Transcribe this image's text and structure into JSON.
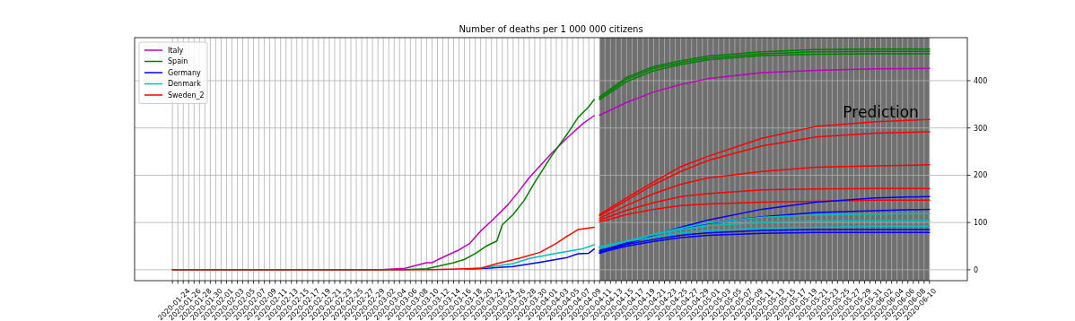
{
  "chart_data": {
    "type": "line",
    "title": "Number of deaths per 1 000 000 citizens",
    "xlim": [
      "2020-01-15",
      "2020-06-17"
    ],
    "ylim": [
      -23,
      491
    ],
    "yticks": [
      0,
      100,
      200,
      300,
      400
    ],
    "xticks": [
      {
        "value": "2020-01-22",
        "label": null
      },
      {
        "value": "2020-01-23",
        "label": null
      },
      "2020-01-24",
      {
        "value": "2020-01-25",
        "label": null
      },
      "2020-01-26",
      {
        "value": "2020-01-27",
        "label": null
      },
      "2020-01-28",
      {
        "value": "2020-01-29",
        "label": null
      },
      "2020-01-30",
      {
        "value": "2020-01-31",
        "label": null
      },
      "2020-02-01",
      {
        "value": "2020-02-02",
        "label": null
      },
      "2020-02-03",
      {
        "value": "2020-02-04",
        "label": null
      },
      "2020-02-05",
      {
        "value": "2020-02-06",
        "label": null
      },
      "2020-02-07",
      {
        "value": "2020-02-08",
        "label": null
      },
      "2020-02-09",
      {
        "value": "2020-02-10",
        "label": null
      },
      "2020-02-11",
      {
        "value": "2020-02-12",
        "label": null
      },
      "2020-02-13",
      {
        "value": "2020-02-14",
        "label": null
      },
      "2020-02-15",
      {
        "value": "2020-02-16",
        "label": null
      },
      "2020-02-17",
      {
        "value": "2020-02-18",
        "label": null
      },
      "2020-02-19",
      {
        "value": "2020-02-20",
        "label": null
      },
      "2020-02-21",
      {
        "value": "2020-02-22",
        "label": null
      },
      "2020-02-23",
      {
        "value": "2020-02-24",
        "label": null
      },
      "2020-02-25",
      {
        "value": "2020-02-26",
        "label": null
      },
      "2020-02-27",
      {
        "value": "2020-02-28",
        "label": null
      },
      "2020-02-29",
      {
        "value": "2020-03-01",
        "label": null
      },
      "2020-03-02",
      {
        "value": "2020-03-03",
        "label": null
      },
      "2020-03-04",
      {
        "value": "2020-03-05",
        "label": null
      },
      "2020-03-06",
      {
        "value": "2020-03-07",
        "label": null
      },
      "2020-03-08",
      {
        "value": "2020-03-09",
        "label": null
      },
      "2020-03-10",
      {
        "value": "2020-03-11",
        "label": null
      },
      "2020-03-12",
      {
        "value": "2020-03-13",
        "label": null
      },
      "2020-03-14",
      {
        "value": "2020-03-15",
        "label": null
      },
      "2020-03-16",
      {
        "value": "2020-03-17",
        "label": null
      },
      "2020-03-18",
      {
        "value": "2020-03-19",
        "label": null
      },
      "2020-03-20",
      {
        "value": "2020-03-21",
        "label": null
      },
      "2020-03-22",
      {
        "value": "2020-03-23",
        "label": null
      },
      "2020-03-24",
      {
        "value": "2020-03-25",
        "label": null
      },
      "2020-03-26",
      {
        "value": "2020-03-27",
        "label": null
      },
      "2020-03-28",
      {
        "value": "2020-03-29",
        "label": null
      },
      "2020-03-30",
      {
        "value": "2020-03-31",
        "label": null
      },
      "2020-04-01",
      {
        "value": "2020-04-02",
        "label": null
      },
      "2020-04-03",
      {
        "value": "2020-04-04",
        "label": null
      },
      "2020-04-05",
      {
        "value": "2020-04-06",
        "label": null
      },
      "2020-04-07",
      {
        "value": "2020-04-08",
        "label": null
      },
      "2020-04-09",
      {
        "value": "2020-04-10",
        "label": null
      },
      "2020-04-11",
      {
        "value": "2020-04-12",
        "label": null
      },
      "2020-04-13",
      {
        "value": "2020-04-14",
        "label": null
      },
      "2020-04-15",
      {
        "value": "2020-04-16",
        "label": null
      },
      "2020-04-17",
      {
        "value": "2020-04-18",
        "label": null
      },
      "2020-04-19",
      {
        "value": "2020-04-20",
        "label": null
      },
      "2020-04-21",
      {
        "value": "2020-04-22",
        "label": null
      },
      "2020-04-23",
      {
        "value": "2020-04-24",
        "label": null
      },
      "2020-04-25",
      {
        "value": "2020-04-26",
        "label": null
      },
      "2020-04-27",
      {
        "value": "2020-04-28",
        "label": null
      },
      "2020-04-29",
      {
        "value": "2020-04-30",
        "label": null
      },
      "2020-05-01",
      {
        "value": "2020-05-02",
        "label": null
      },
      "2020-05-03",
      {
        "value": "2020-05-04",
        "label": null
      },
      "2020-05-05",
      {
        "value": "2020-05-06",
        "label": null
      },
      "2020-05-07",
      {
        "value": "2020-05-08",
        "label": null
      },
      "2020-05-09",
      {
        "value": "2020-05-10",
        "label": null
      },
      "2020-05-11",
      {
        "value": "2020-05-12",
        "label": null
      },
      "2020-05-13",
      {
        "value": "2020-05-14",
        "label": null
      },
      "2020-05-15",
      {
        "value": "2020-05-16",
        "label": null
      },
      "2020-05-17",
      {
        "value": "2020-05-18",
        "label": null
      },
      "2020-05-19",
      {
        "value": "2020-05-20",
        "label": null
      },
      "2020-05-21",
      {
        "value": "2020-05-22",
        "label": null
      },
      "2020-05-23",
      {
        "value": "2020-05-24",
        "label": null
      },
      "2020-05-25",
      {
        "value": "2020-05-26",
        "label": null
      },
      "2020-05-27",
      {
        "value": "2020-05-28",
        "label": null
      },
      "2020-05-29",
      {
        "value": "2020-05-30",
        "label": null
      },
      "2020-05-31",
      {
        "value": "2020-06-01",
        "label": null
      },
      "2020-06-02",
      {
        "value": "2020-06-03",
        "label": null
      },
      "2020-06-04",
      {
        "value": "2020-06-05",
        "label": null
      },
      "2020-06-06",
      {
        "value": "2020-06-07",
        "label": null
      },
      "2020-06-08",
      {
        "value": "2020-06-09",
        "label": null
      },
      "2020-06-10"
    ],
    "grid": true,
    "legend": "top left",
    "bands": [
      {
        "axis": "x",
        "from": "2020-04-10",
        "to": "2020-06-10",
        "label": "Prediction",
        "color": "#707070"
      }
    ],
    "series": [
      {
        "name": "Italy",
        "color": "#bf00bf",
        "x": [
          "2020-01-22",
          "2020-02-29",
          "2020-03-05",
          "2020-03-09",
          "2020-03-10",
          "2020-03-11",
          "2020-03-15",
          "2020-03-17",
          "2020-03-19",
          "2020-03-21",
          "2020-03-24",
          "2020-03-26",
          "2020-03-28",
          "2020-04-01",
          "2020-04-04",
          "2020-04-07",
          "2020-04-09"
        ],
        "values": [
          0,
          0,
          3,
          15,
          15,
          21,
          42,
          56,
          82,
          103,
          137,
          165,
          195,
          245,
          279,
          310,
          326
        ]
      },
      {
        "name": "Spain",
        "color": "#008000",
        "x": [
          "2020-01-22",
          "2020-03-05",
          "2020-03-09",
          "2020-03-14",
          "2020-03-16",
          "2020-03-18",
          "2020-03-20",
          "2020-03-22",
          "2020-03-23",
          "2020-03-25",
          "2020-03-27",
          "2020-03-29",
          "2020-04-01",
          "2020-04-04",
          "2020-04-06",
          "2020-04-08",
          "2020-04-09"
        ],
        "values": [
          0,
          0,
          2,
          15,
          22,
          34,
          50,
          61,
          95,
          117,
          146,
          185,
          239,
          287,
          322,
          345,
          360
        ]
      },
      {
        "name": "Germany",
        "color": "#0000ff",
        "x": [
          "2020-03-16",
          "2020-03-20",
          "2020-03-25",
          "2020-03-30",
          "2020-04-04",
          "2020-04-06",
          "2020-04-08",
          "2020-04-09"
        ],
        "values": [
          1,
          3,
          7,
          16,
          26,
          34,
          35,
          44
        ]
      },
      {
        "name": "Denmark",
        "color": "#00bfbf",
        "x": [
          "2020-03-16",
          "2020-03-20",
          "2020-03-25",
          "2020-03-28",
          "2020-04-02",
          "2020-04-07",
          "2020-04-09"
        ],
        "values": [
          1,
          5,
          13,
          24,
          35,
          45,
          53
        ]
      },
      {
        "name": "Sweden_2",
        "color": "#ff0000",
        "x": [
          "2020-01-22",
          "2020-03-10",
          "2020-03-19",
          "2020-03-22",
          "2020-03-26",
          "2020-03-30",
          "2020-04-02",
          "2020-04-04",
          "2020-04-06",
          "2020-04-09"
        ],
        "values": [
          0,
          0,
          3,
          13,
          24,
          37,
          56,
          71,
          85,
          90
        ]
      },
      {
        "color": "#008000",
        "x": [
          "2020-04-10",
          "2020-04-15",
          "2020-04-20",
          "2020-04-25",
          "2020-04-30",
          "2020-05-10",
          "2020-05-20",
          "2020-05-31",
          "2020-06-10"
        ],
        "values": [
          366,
          407,
          430,
          442,
          452,
          461,
          466,
          467,
          467
        ]
      },
      {
        "color": "#008000",
        "x": [
          "2020-04-10",
          "2020-04-15",
          "2020-04-20",
          "2020-04-25",
          "2020-04-30",
          "2020-05-10",
          "2020-05-20",
          "2020-05-31",
          "2020-06-10"
        ],
        "values": [
          363,
          403,
          426,
          438,
          448,
          457,
          461,
          462,
          462
        ]
      },
      {
        "color": "#008000",
        "x": [
          "2020-04-10",
          "2020-04-15",
          "2020-04-20",
          "2020-04-25",
          "2020-04-30",
          "2020-05-10",
          "2020-05-20",
          "2020-05-31",
          "2020-06-10"
        ],
        "values": [
          360,
          398,
          421,
          434,
          444,
          453,
          456,
          457,
          457
        ]
      },
      {
        "color": "#bf00bf",
        "x": [
          "2020-04-10",
          "2020-04-15",
          "2020-04-20",
          "2020-04-25",
          "2020-04-30",
          "2020-05-10",
          "2020-05-20",
          "2020-05-31",
          "2020-06-10"
        ],
        "values": [
          327,
          354,
          376,
          392,
          404,
          417,
          422,
          425,
          426
        ]
      },
      {
        "color": "#ff0000",
        "x": [
          "2020-04-10",
          "2020-04-15",
          "2020-04-20",
          "2020-04-25",
          "2020-04-30",
          "2020-05-10",
          "2020-05-20",
          "2020-05-31",
          "2020-06-10"
        ],
        "values": [
          117,
          152,
          186,
          218,
          240,
          278,
          303,
          313,
          318
        ]
      },
      {
        "color": "#ff0000",
        "x": [
          "2020-04-10",
          "2020-04-15",
          "2020-04-20",
          "2020-04-25",
          "2020-04-30",
          "2020-05-10",
          "2020-05-20",
          "2020-05-31",
          "2020-06-10"
        ],
        "values": [
          114,
          147,
          180,
          208,
          231,
          262,
          281,
          289,
          292
        ]
      },
      {
        "color": "#ff0000",
        "x": [
          "2020-04-10",
          "2020-04-15",
          "2020-04-20",
          "2020-04-25",
          "2020-04-30",
          "2020-05-10",
          "2020-05-20",
          "2020-05-31",
          "2020-06-10"
        ],
        "values": [
          109,
          136,
          161,
          181,
          194,
          208,
          217,
          220,
          222
        ]
      },
      {
        "color": "#ff0000",
        "x": [
          "2020-04-10",
          "2020-04-15",
          "2020-04-20",
          "2020-04-25",
          "2020-04-30",
          "2020-05-10",
          "2020-05-20",
          "2020-05-31",
          "2020-06-10"
        ],
        "values": [
          105,
          126,
          142,
          155,
          161,
          169,
          171,
          172,
          172
        ]
      },
      {
        "color": "#ff0000",
        "x": [
          "2020-04-10",
          "2020-04-15",
          "2020-04-20",
          "2020-04-25",
          "2020-04-30",
          "2020-05-10",
          "2020-05-20",
          "2020-05-31",
          "2020-06-10"
        ],
        "values": [
          101,
          117,
          128,
          136,
          139,
          143,
          145,
          147,
          147
        ]
      },
      {
        "color": "#0000ff",
        "x": [
          "2020-04-10",
          "2020-04-15",
          "2020-04-20",
          "2020-04-25",
          "2020-04-30",
          "2020-05-10",
          "2020-05-20",
          "2020-05-31",
          "2020-06-10"
        ],
        "values": [
          35,
          54,
          73,
          90,
          105,
          128,
          143,
          152,
          155
        ]
      },
      {
        "color": "#0000ff",
        "x": [
          "2020-04-10",
          "2020-04-15",
          "2020-04-20",
          "2020-04-25",
          "2020-04-30",
          "2020-05-10",
          "2020-05-20",
          "2020-05-31",
          "2020-06-10"
        ],
        "values": [
          38,
          57,
          74,
          87,
          98,
          112,
          121,
          125,
          128
        ]
      },
      {
        "color": "#0000ff",
        "x": [
          "2020-04-10",
          "2020-04-15",
          "2020-04-20",
          "2020-04-25",
          "2020-04-30",
          "2020-05-10",
          "2020-05-20",
          "2020-05-31",
          "2020-06-10"
        ],
        "values": [
          41,
          54,
          64,
          73,
          78,
          83,
          85,
          85,
          85
        ]
      },
      {
        "color": "#0000ff",
        "x": [
          "2020-04-10",
          "2020-04-15",
          "2020-04-20",
          "2020-04-25",
          "2020-04-30",
          "2020-05-10",
          "2020-05-20",
          "2020-05-31",
          "2020-06-10"
        ],
        "values": [
          36,
          50,
          60,
          68,
          73,
          77,
          79,
          79,
          79
        ]
      },
      {
        "color": "#00bfbf",
        "x": [
          "2020-04-10",
          "2020-04-15",
          "2020-04-20",
          "2020-04-25",
          "2020-04-30",
          "2020-05-10",
          "2020-05-20",
          "2020-05-31",
          "2020-06-10"
        ],
        "values": [
          46,
          60,
          75,
          88,
          99,
          111,
          116,
          118,
          119
        ]
      },
      {
        "color": "#00bfbf",
        "x": [
          "2020-04-10",
          "2020-04-15",
          "2020-04-20",
          "2020-04-25",
          "2020-04-30",
          "2020-05-10",
          "2020-05-20",
          "2020-05-31",
          "2020-06-10"
        ],
        "values": [
          47,
          61,
          74,
          85,
          93,
          100,
          103,
          104,
          104
        ]
      },
      {
        "color": "#00bfbf",
        "x": [
          "2020-04-10",
          "2020-04-15",
          "2020-04-20",
          "2020-04-25",
          "2020-04-30",
          "2020-05-10",
          "2020-05-20",
          "2020-05-31",
          "2020-06-10"
        ],
        "values": [
          49,
          60,
          69,
          78,
          83,
          88,
          90,
          92,
          92
        ]
      }
    ]
  }
}
